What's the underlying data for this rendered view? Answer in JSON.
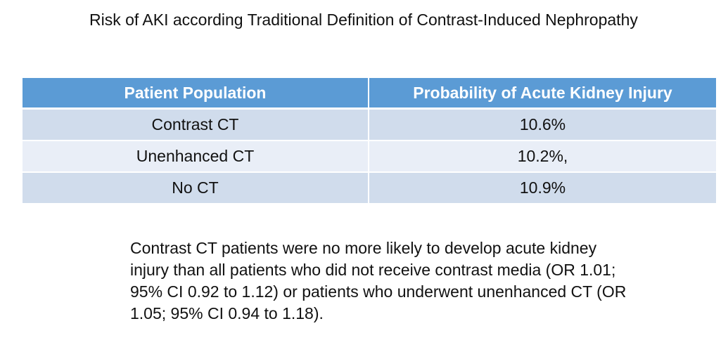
{
  "title": "Risk of AKI according Traditional Definition of Contrast-Induced Nephropathy",
  "table": {
    "headers": [
      "Patient Population",
      "Probability of Acute Kidney Injury"
    ],
    "rows": [
      [
        "Contrast CT",
        "10.6%"
      ],
      [
        "Unenhanced CT",
        "10.2%,"
      ],
      [
        "No CT",
        "10.9%"
      ]
    ]
  },
  "note": "Contrast CT patients were no more likely to develop acute kidney injury than all patients who did not receive contrast media (OR 1.01; 95% CI 0.92 to 1.12) or patients who underwent unenhanced CT (OR 1.05; 95% CI 0.94 to 1.18).",
  "colors": {
    "header_bg": "#5b9bd5",
    "row_odd_bg": "#d0dcec",
    "row_even_bg": "#e9eef7"
  }
}
